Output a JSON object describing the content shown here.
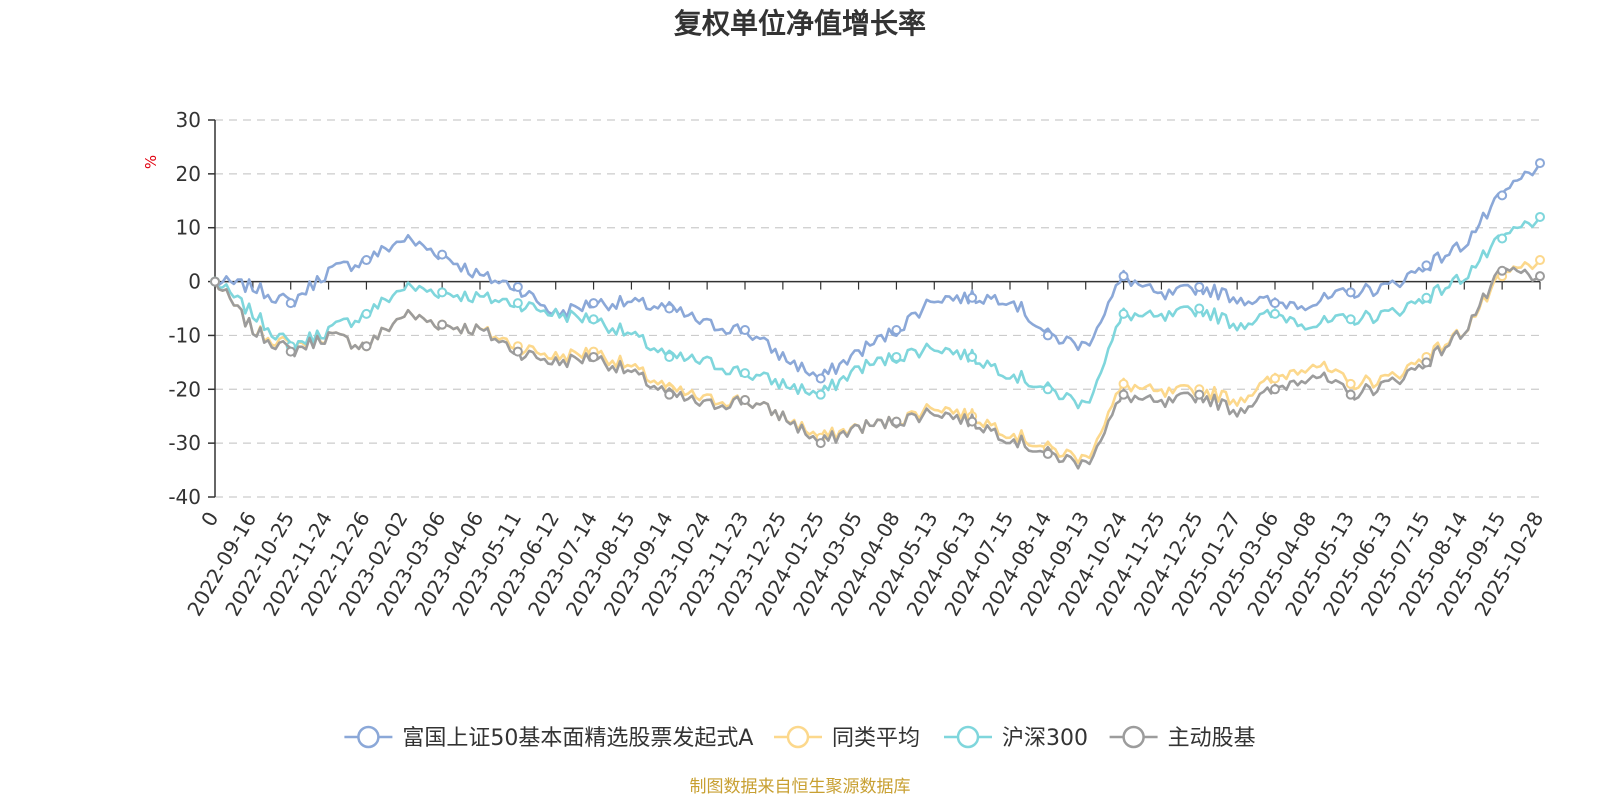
{
  "chart_data": {
    "type": "line",
    "title": "复权单位净值增长率",
    "ylabel": "%",
    "ylim": [
      -40,
      30
    ],
    "yticks": [
      30,
      20,
      10,
      0,
      -10,
      -20,
      -30,
      -40
    ],
    "categories": [
      "0",
      "2022-09-16",
      "2022-10-25",
      "2022-11-24",
      "2022-12-26",
      "2023-02-02",
      "2023-03-06",
      "2023-04-06",
      "2023-05-11",
      "2023-06-12",
      "2023-07-14",
      "2023-08-15",
      "2023-09-14",
      "2023-10-24",
      "2023-11-23",
      "2023-12-25",
      "2024-01-25",
      "2024-03-05",
      "2024-04-08",
      "2024-05-13",
      "2024-06-13",
      "2024-07-15",
      "2024-08-14",
      "2024-09-13",
      "2024-10-24",
      "2024-11-25",
      "2024-12-25",
      "2025-01-27",
      "2025-03-06",
      "2025-04-08",
      "2025-05-13",
      "2025-06-13",
      "2025-07-15",
      "2025-08-14",
      "2025-09-15",
      "2025-10-28"
    ],
    "series": [
      {
        "name": "富国上证50基本面精选股票发起式A",
        "color": "#8ba8d8",
        "values": [
          0,
          -1,
          -4,
          2,
          4,
          8,
          5,
          1,
          -1,
          -6,
          -4,
          -4,
          -5,
          -8,
          -9,
          -14,
          -18,
          -13,
          -9,
          -3,
          -3,
          -3,
          -10,
          -12,
          1,
          -3,
          -1,
          -3,
          -4,
          -4,
          -2,
          -1,
          3,
          7,
          16,
          22
        ]
      },
      {
        "name": "同类平均",
        "color": "#fcd88c",
        "values": [
          0,
          -9,
          -12,
          -10,
          -12,
          -6,
          -8,
          -9,
          -12,
          -14,
          -13,
          -16,
          -20,
          -22,
          -22,
          -25,
          -29,
          -27,
          -26,
          -23,
          -25,
          -28,
          -31,
          -33,
          -19,
          -21,
          -20,
          -22,
          -18,
          -15,
          -19,
          -18,
          -14,
          -9,
          1,
          4
        ]
      },
      {
        "name": "沪深300",
        "color": "#7fd6dc",
        "values": [
          0,
          -6,
          -12,
          -9,
          -6,
          -1,
          -2,
          -3,
          -4,
          -6,
          -7,
          -10,
          -14,
          -15,
          -17,
          -19,
          -21,
          -16,
          -14,
          -12,
          -14,
          -17,
          -20,
          -23,
          -6,
          -7,
          -5,
          -8,
          -6,
          -8,
          -7,
          -6,
          -3,
          1,
          8,
          12
        ]
      },
      {
        "name": "主动股基",
        "color": "#9c9c9c",
        "values": [
          0,
          -9,
          -13,
          -10,
          -12,
          -6,
          -8,
          -9,
          -13,
          -15,
          -14,
          -17,
          -21,
          -23,
          -22,
          -25,
          -30,
          -27,
          -26,
          -24,
          -26,
          -29,
          -32,
          -34,
          -21,
          -23,
          -21,
          -24,
          -20,
          -17,
          -21,
          -19,
          -15,
          -9,
          2,
          1
        ]
      }
    ],
    "source_text": "制图数据来自恒生聚源数据库",
    "legend_position": "bottom-center",
    "grid": true
  }
}
